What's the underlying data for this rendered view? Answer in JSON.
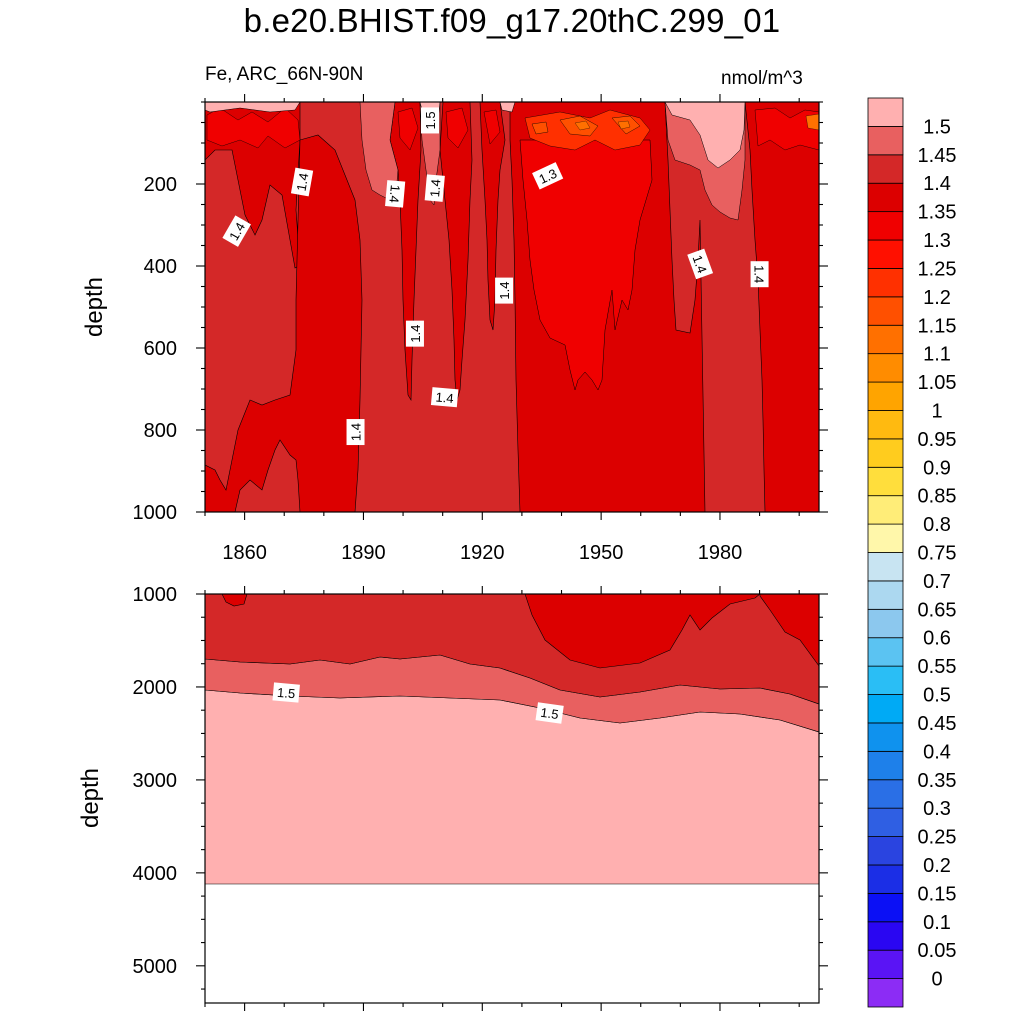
{
  "title": "b.e20.BHIST.f09_g17.20thC.299_01",
  "subtitle_left": "Fe, ARC_66N-90N",
  "subtitle_right": "nmol/m^3",
  "colorbar": {
    "labels": [
      "0",
      "0.05",
      "0.1",
      "0.15",
      "0.2",
      "0.25",
      "0.3",
      "0.35",
      "0.4",
      "0.45",
      "0.5",
      "0.55",
      "0.6",
      "0.65",
      "0.7",
      "0.75",
      "0.8",
      "0.85",
      "0.9",
      "0.95",
      "1",
      "1.05",
      "1.1",
      "1.15",
      "1.2",
      "1.25",
      "1.3",
      "1.35",
      "1.4",
      "1.45",
      "1.5"
    ],
    "colors": [
      "#8c2cf5",
      "#5a14f5",
      "#2a06f2",
      "#0b10f5",
      "#1b2ee6",
      "#2a44e0",
      "#2f5fe3",
      "#2a6fe6",
      "#1e80ea",
      "#0f92ee",
      "#00aaf5",
      "#2abef5",
      "#5bc3f2",
      "#8cc8ee",
      "#acd8f0",
      "#c8e4f2",
      "#fff7aa",
      "#ffed78",
      "#ffde3c",
      "#ffcc1e",
      "#ffba10",
      "#ffa400",
      "#ff8c00",
      "#ff7000",
      "#ff5000",
      "#ff3000",
      "#ff1000",
      "#f00000",
      "#dc0000",
      "#d42828",
      "#e86060",
      "#ffb0b0"
    ]
  },
  "chart_data": [
    {
      "type": "contour",
      "panel": "upper",
      "variable": "Fe",
      "region": "ARC_66N-90N",
      "units": "nmol/m^3",
      "xlabel": "",
      "ylabel": "depth",
      "xlim": [
        1850,
        2005
      ],
      "ylim": [
        1000,
        0
      ],
      "x_ticks": [
        1860,
        1890,
        1920,
        1950,
        1980
      ],
      "x_tick_labels": [
        "1860",
        "1890",
        "1920",
        "1950",
        "1980"
      ],
      "y_ticks": [
        200,
        400,
        600,
        800,
        1000
      ],
      "y_tick_labels": [
        "200",
        "400",
        "600",
        "800",
        "1000"
      ],
      "contour_labels": [
        {
          "text": "1.5",
          "x": 1906.8,
          "y": 45,
          "rot": -90
        },
        {
          "text": "1.3",
          "x": 1936.5,
          "y": 180,
          "rot": -25
        },
        {
          "text": "1.4",
          "x": 1874.5,
          "y": 195,
          "rot": -80
        },
        {
          "text": "1.4",
          "x": 1908,
          "y": 210,
          "rot": -85
        },
        {
          "text": "1.4",
          "x": 1898,
          "y": 224,
          "rot": 95
        },
        {
          "text": "1.4",
          "x": 1858,
          "y": 315,
          "rot": -60
        },
        {
          "text": "1.4",
          "x": 1975,
          "y": 395,
          "rot": 70
        },
        {
          "text": "1.4",
          "x": 1990,
          "y": 420,
          "rot": 90
        },
        {
          "text": "1.4",
          "x": 1925.5,
          "y": 460,
          "rot": -90
        },
        {
          "text": "1.4",
          "x": 1903,
          "y": 565,
          "rot": -90
        },
        {
          "text": "1.4",
          "x": 1910.5,
          "y": 720,
          "rot": 5
        },
        {
          "text": "1.4",
          "x": 1888,
          "y": 805,
          "rot": -90
        }
      ]
    },
    {
      "type": "contour",
      "panel": "lower",
      "variable": "Fe",
      "units": "nmol/m^3",
      "xlabel": "",
      "ylabel": "depth",
      "xlim": [
        1850,
        2005
      ],
      "ylim": [
        5400,
        1000
      ],
      "y_ticks": [
        1000,
        2000,
        3000,
        4000,
        5000
      ],
      "y_tick_labels": [
        "1000",
        "2000",
        "3000",
        "4000",
        "5000"
      ],
      "contour_labels": [
        {
          "text": "1.5",
          "x": 1870.5,
          "y": 2060,
          "rot": 5
        },
        {
          "text": "1.5",
          "x": 1937,
          "y": 2280,
          "rot": 8
        }
      ]
    }
  ]
}
